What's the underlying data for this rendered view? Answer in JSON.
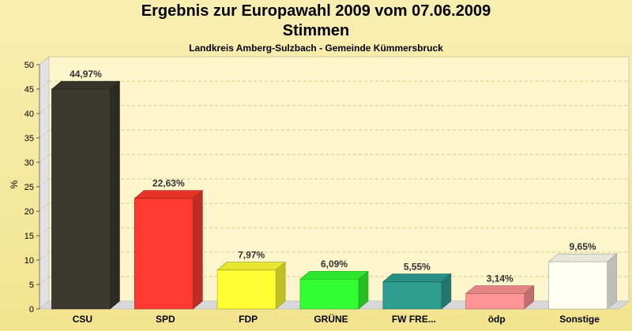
{
  "chart_data": {
    "type": "bar",
    "title": "Ergebnis zur Europawahl 2009 vom 07.06.2009",
    "subtitle": "Stimmen",
    "caption": "Landkreis Amberg-Sulzbach - Gemeinde Kümmersbruck",
    "xlabel": "",
    "ylabel": "%",
    "ylim": [
      0,
      50
    ],
    "yticks": [
      "0",
      "5",
      "10",
      "15",
      "20",
      "25",
      "30",
      "35",
      "40",
      "45",
      "50"
    ],
    "grid": true,
    "categories": [
      "CSU",
      "SPD",
      "FDP",
      "GRÜNE",
      "FW FRE...",
      "ödp",
      "Sonstige"
    ],
    "values": [
      44.97,
      22.63,
      7.97,
      6.09,
      5.55,
      3.14,
      9.65
    ],
    "value_labels": [
      "44,97%",
      "22,63%",
      "7,97%",
      "6,09%",
      "5,55%",
      "3,14%",
      "9,65%"
    ],
    "colors": [
      "#3b3a2e",
      "#ff3a30",
      "#ffff33",
      "#33ff33",
      "#2e9e92",
      "#ff9494",
      "#fffff2"
    ]
  }
}
